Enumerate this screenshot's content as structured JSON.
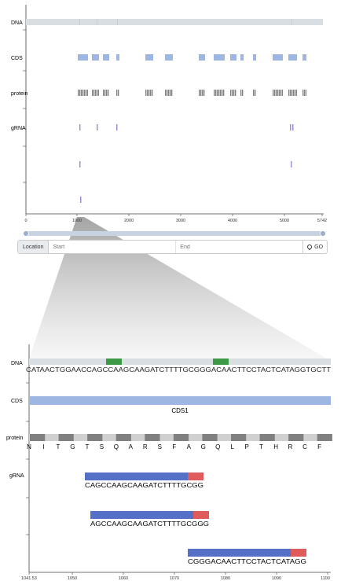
{
  "overview": {
    "track_labels": [
      "DNA",
      "CDS",
      "protein",
      "gRNA"
    ],
    "axis_ticks": [
      "0",
      "1000",
      "2000",
      "3000",
      "4000",
      "5000",
      "5742"
    ]
  },
  "location": {
    "label": "Location",
    "start_placeholder": "Start",
    "end_placeholder": "End",
    "go_label": "GO",
    "icon": "map-pin-icon"
  },
  "detail": {
    "track_labels": [
      "DNA",
      "CDS",
      "protein",
      "gRNA"
    ],
    "dna_sequence": "CATAACTGGAACCAGCCAAGCAAGATCTTTTGCGGGACAACTTCCTACTCATAGGTGCTT",
    "cds_name": "CDS1",
    "protein_sequence": [
      "N",
      "I",
      "T",
      "G",
      "T",
      "S",
      "Q",
      "A",
      "R",
      "S",
      "F",
      "A",
      "G",
      "Q",
      "L",
      "P",
      "T",
      "H",
      "R",
      "C",
      "F"
    ],
    "grnas": [
      "CAGCCAAGCAAGATCTTTTGCGG",
      "AGCCAAGCAAGATCTTTTGCGGG",
      "CGGGACAACTTCCTACTCATAGG"
    ],
    "axis_ticks": [
      "1041.53",
      "1050",
      "1060",
      "1070",
      "1080",
      "1090",
      "1100"
    ]
  },
  "colors": {
    "track_bg": "#d9dee2",
    "cds": "#9db7e2",
    "protein_dark": "#808080",
    "protein_light": "#d0d0d0",
    "grna_body": "#5471c7",
    "grna_pam": "#e05b5b",
    "grna_tick": "#9e8fd4",
    "highlight_green": "#3d9945"
  }
}
